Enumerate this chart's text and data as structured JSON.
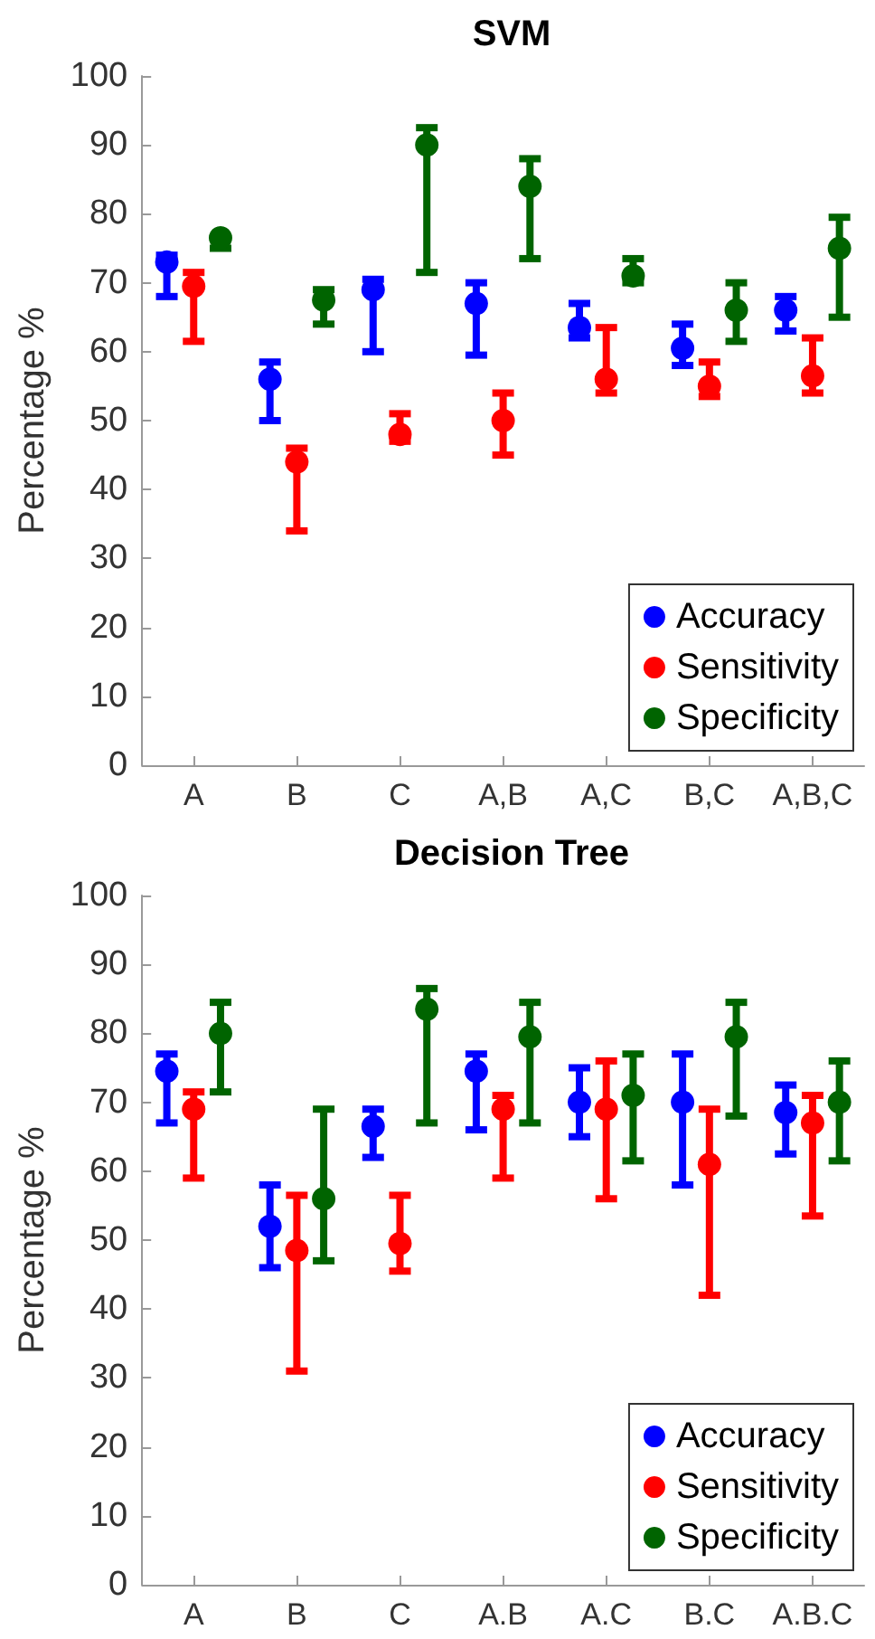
{
  "chart_data": [
    {
      "type": "scatter",
      "title": "SVM",
      "ylabel": "Percentage %",
      "categories": [
        "A",
        "B",
        "C",
        "A,B",
        "A,C",
        "B,C",
        "A,B,C"
      ],
      "ylim": [
        0,
        100
      ],
      "yticks": [
        0,
        10,
        20,
        30,
        40,
        50,
        60,
        70,
        80,
        90,
        100
      ],
      "grid": false,
      "legend": "bottom right",
      "marker": "circle",
      "series": [
        {
          "name": "Accuracy",
          "color": "#0000ff",
          "values": [
            73,
            56,
            69,
            67,
            63.5,
            60.5,
            66
          ],
          "errors": [
            [
              68,
              74
            ],
            [
              50,
              58.5
            ],
            [
              60,
              70.5
            ],
            [
              59.5,
              70
            ],
            [
              62,
              67
            ],
            [
              58,
              64
            ],
            [
              63,
              68
            ]
          ]
        },
        {
          "name": "Sensitivity",
          "color": "#ff0000",
          "values": [
            69.5,
            44,
            48,
            50,
            56,
            55,
            56.5
          ],
          "errors": [
            [
              61.5,
              71.5
            ],
            [
              34,
              46
            ],
            [
              47,
              51
            ],
            [
              45,
              54
            ],
            [
              54,
              63.5
            ],
            [
              53.5,
              58.5
            ],
            [
              54,
              62
            ]
          ]
        },
        {
          "name": "Specificity",
          "color": "#006400",
          "values": [
            76.5,
            67.5,
            90,
            84,
            71,
            66,
            75
          ],
          "errors": [
            [
              75,
              76.5
            ],
            [
              64,
              69
            ],
            [
              71.5,
              92.5
            ],
            [
              73.5,
              88
            ],
            [
              70,
              73.5
            ],
            [
              61.5,
              70
            ],
            [
              65,
              79.5
            ]
          ]
        }
      ]
    },
    {
      "type": "scatter",
      "title": "Decision Tree",
      "ylabel": "Percentage %",
      "categories": [
        "A",
        "B",
        "C",
        "A.B",
        "A.C",
        "B.C",
        "A.B.C"
      ],
      "ylim": [
        0,
        100
      ],
      "yticks": [
        0,
        10,
        20,
        30,
        40,
        50,
        60,
        70,
        80,
        90,
        100
      ],
      "grid": false,
      "legend": "bottom right",
      "marker": "circle",
      "series": [
        {
          "name": "Accuracy",
          "color": "#0000ff",
          "values": [
            74.5,
            52,
            66.5,
            74.5,
            70,
            70,
            68.5
          ],
          "errors": [
            [
              67,
              77
            ],
            [
              46,
              58
            ],
            [
              62,
              69
            ],
            [
              66,
              77
            ],
            [
              65,
              75
            ],
            [
              58,
              77
            ],
            [
              62.5,
              72.5
            ]
          ]
        },
        {
          "name": "Sensitivity",
          "color": "#ff0000",
          "values": [
            69,
            48.5,
            49.5,
            69,
            69,
            61,
            67
          ],
          "errors": [
            [
              59,
              71.5
            ],
            [
              31,
              56.5
            ],
            [
              45.5,
              56.5
            ],
            [
              59,
              71
            ],
            [
              56,
              76
            ],
            [
              42,
              69
            ],
            [
              53.5,
              71
            ]
          ]
        },
        {
          "name": "Specificity",
          "color": "#006400",
          "values": [
            80,
            56,
            83.5,
            79.5,
            71,
            79.5,
            70
          ],
          "errors": [
            [
              71.5,
              84.5
            ],
            [
              47,
              69
            ],
            [
              67,
              86.5
            ],
            [
              67,
              84.5
            ],
            [
              61.5,
              77
            ],
            [
              68,
              84.5
            ],
            [
              61.5,
              76
            ]
          ]
        }
      ]
    }
  ]
}
